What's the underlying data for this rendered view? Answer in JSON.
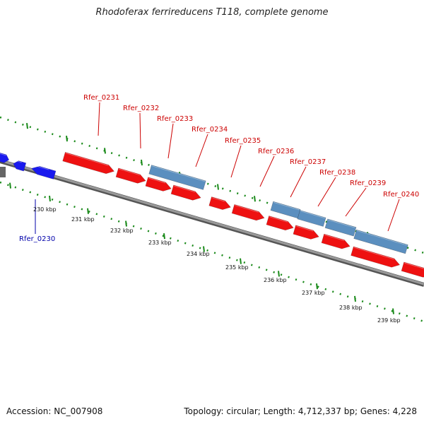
{
  "title": "Rhodoferax ferrireducens T118, complete genome",
  "accession": "Accession: NC_007908",
  "summary": "Topology: circular; Length: 4,712,337 bp; Genes: 4,228",
  "colors": {
    "forward_gene": "#ee1111",
    "reverse_gene_blue": "#1a1aee",
    "rna_gene": "#5b8fbf",
    "backbone": "#888888",
    "dots": "#1a8a1a",
    "label_red": "#cc0000",
    "label_blue": "#0000aa"
  },
  "gene_labels": [
    {
      "text": "Rfer_0230",
      "color": "blue"
    },
    {
      "text": "Rfer_0231",
      "color": "red"
    },
    {
      "text": "Rfer_0232",
      "color": "red"
    },
    {
      "text": "Rfer_0233",
      "color": "red"
    },
    {
      "text": "Rfer_0234",
      "color": "red"
    },
    {
      "text": "Rfer_0235",
      "color": "red"
    },
    {
      "text": "Rfer_0236",
      "color": "red"
    },
    {
      "text": "Rfer_0237",
      "color": "red"
    },
    {
      "text": "Rfer_0238",
      "color": "red"
    },
    {
      "text": "Rfer_0239",
      "color": "red"
    },
    {
      "text": "Rfer_0240",
      "color": "red"
    }
  ],
  "tick_labels": [
    "230 kbp",
    "231 kbp",
    "232 kbp",
    "233 kbp",
    "234 kbp",
    "235 kbp",
    "236 kbp",
    "237 kbp",
    "238 kbp",
    "239 kbp"
  ]
}
